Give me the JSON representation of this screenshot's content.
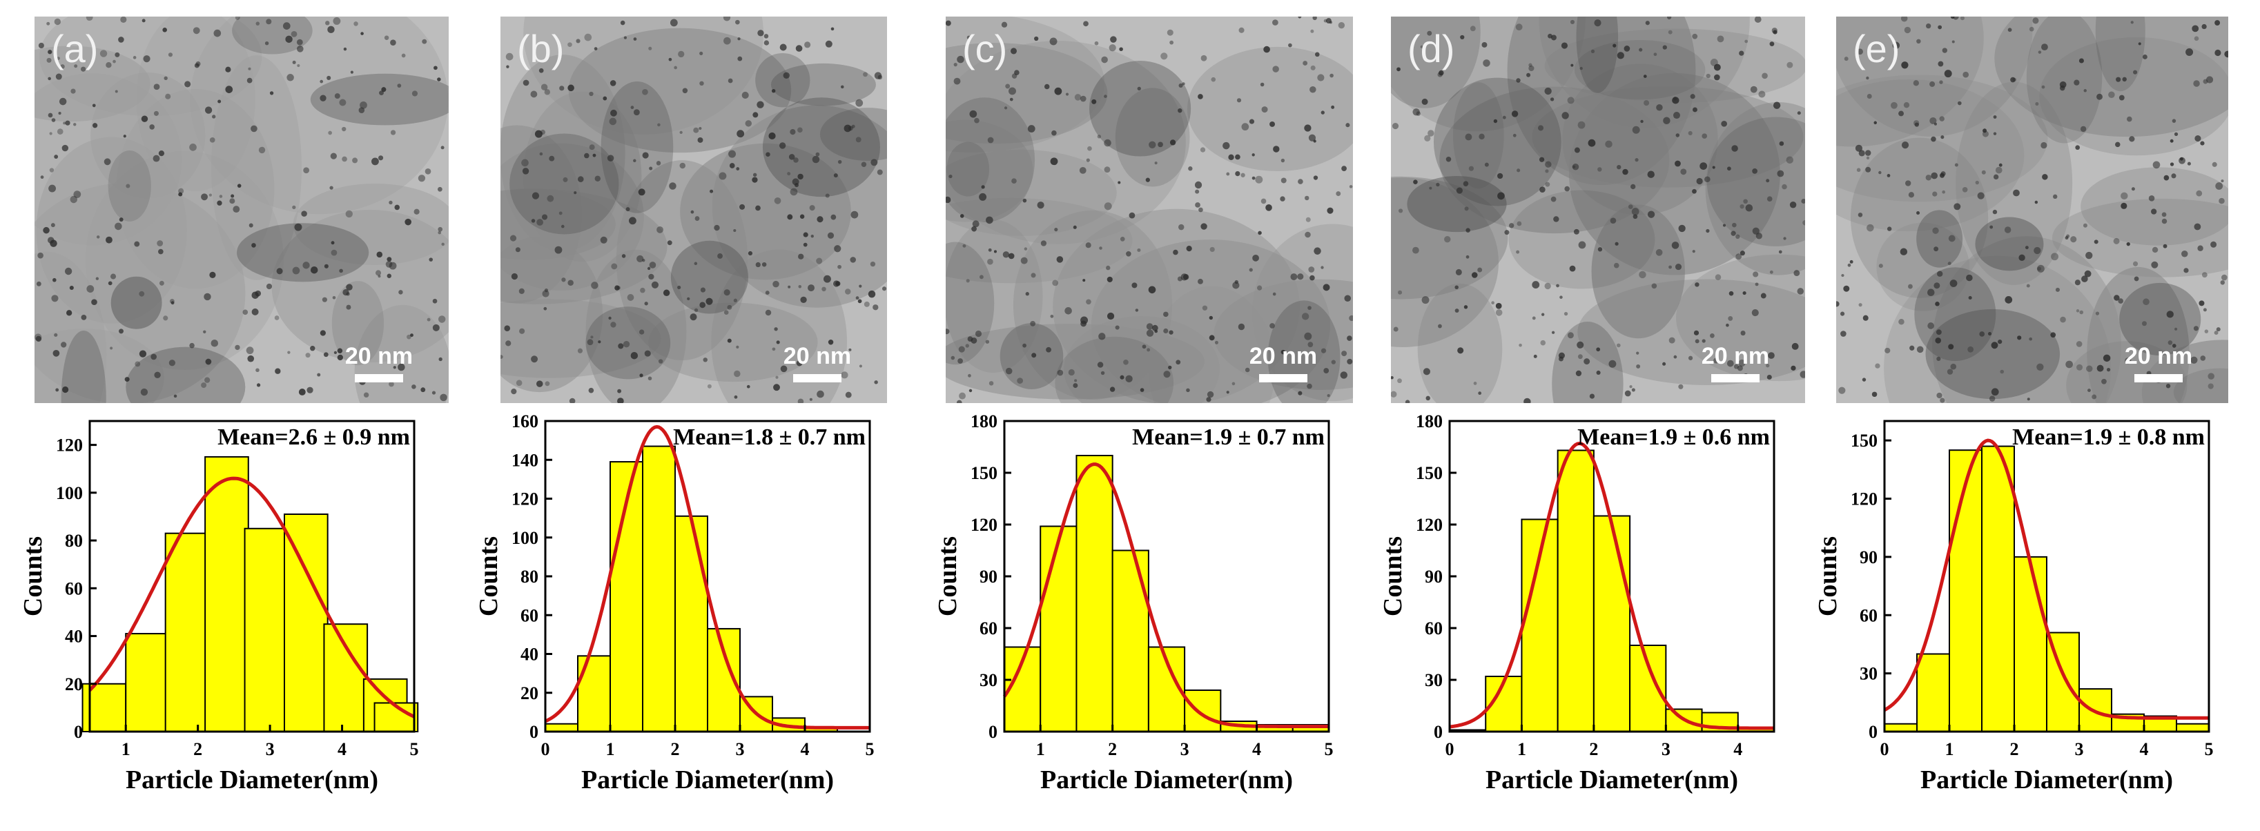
{
  "panels": [
    {
      "label": "(a)",
      "scale_text": "20 nm",
      "mean_text": "Mean=2.6 ± 0.9 nm",
      "tem_tone": "#9e9e9e",
      "chart_data": {
        "type": "bar",
        "x": [
          0.7,
          1.3,
          1.85,
          2.4,
          2.95,
          3.5,
          4.05,
          4.6
        ],
        "values": [
          20,
          41,
          83,
          115,
          85,
          91,
          45,
          22
        ],
        "fit": {
          "mean": 2.5,
          "sigma": 1.05,
          "peak": 106,
          "baseline": 0
        },
        "xlabel": "Particle Diameter(nm)",
        "ylabel": "Counts",
        "xlim": [
          0.5,
          5
        ],
        "ylim": [
          0,
          130
        ],
        "xticks": [
          1,
          2,
          3,
          4,
          5
        ],
        "yticks": [
          0,
          20,
          40,
          60,
          80,
          100,
          120
        ],
        "extra_bars": [
          {
            "x": 4.75,
            "value": 12
          }
        ]
      }
    },
    {
      "label": "(b)",
      "scale_text": "20 nm",
      "mean_text": "Mean=1.8 ± 0.7 nm",
      "tem_tone": "#8a8a8a",
      "chart_data": {
        "type": "bar",
        "x": [
          0.25,
          0.75,
          1.25,
          1.75,
          2.25,
          2.75,
          3.25,
          3.75
        ],
        "values": [
          4,
          39,
          139,
          147,
          111,
          53,
          18,
          7
        ],
        "fit": {
          "mean": 1.72,
          "sigma": 0.62,
          "peak": 157,
          "baseline": 2
        },
        "xlabel": "Particle Diameter(nm)",
        "ylabel": "Counts",
        "xlim": [
          0,
          5
        ],
        "ylim": [
          0,
          160
        ],
        "xticks": [
          0,
          1,
          2,
          3,
          4,
          5
        ],
        "yticks": [
          0,
          20,
          40,
          60,
          80,
          100,
          120,
          140,
          160
        ],
        "extra_bars": [
          {
            "x": 4.25,
            "value": 2
          }
        ]
      }
    },
    {
      "label": "(c)",
      "scale_text": "20 nm",
      "mean_text": "Mean=1.9 ± 0.7 nm",
      "tem_tone": "#8f8f8f",
      "chart_data": {
        "type": "bar",
        "x": [
          0.75,
          1.25,
          1.75,
          2.25,
          2.75,
          3.25,
          3.75,
          4.25
        ],
        "values": [
          49,
          119,
          160,
          105,
          49,
          24,
          6,
          4
        ],
        "fit": {
          "mean": 1.75,
          "sigma": 0.6,
          "peak": 155,
          "baseline": 3
        },
        "xlabel": "Particle Diameter(nm)",
        "ylabel": "Counts",
        "xlim": [
          0.5,
          5
        ],
        "ylim": [
          0,
          180
        ],
        "xticks": [
          1,
          2,
          3,
          4,
          5
        ],
        "yticks": [
          0,
          30,
          60,
          90,
          120,
          150,
          180
        ],
        "extra_bars": [
          {
            "x": 4.75,
            "value": 4
          }
        ]
      }
    },
    {
      "label": "(d)",
      "scale_text": "20 nm",
      "mean_text": "Mean=1.9 ± 0.6 nm",
      "tem_tone": "#7c7c7c",
      "chart_data": {
        "type": "bar",
        "x": [
          0.25,
          0.75,
          1.25,
          1.75,
          2.25,
          2.75,
          3.25,
          3.75
        ],
        "values": [
          1,
          32,
          123,
          163,
          125,
          50,
          13,
          11
        ],
        "fit": {
          "mean": 1.8,
          "sigma": 0.55,
          "peak": 167,
          "baseline": 2
        },
        "xlabel": "Particle Diameter(nm)",
        "ylabel": "Counts",
        "xlim": [
          0,
          4.5
        ],
        "ylim": [
          0,
          180
        ],
        "xticks": [
          0,
          1,
          2,
          3,
          4
        ],
        "yticks": [
          0,
          30,
          60,
          90,
          120,
          150,
          180
        ],
        "extra_bars": [
          {
            "x": 4.25,
            "value": 2
          }
        ]
      }
    },
    {
      "label": "(e)",
      "scale_text": "20 nm",
      "mean_text": "Mean=1.9 ± 0.8 nm",
      "tem_tone": "#858585",
      "chart_data": {
        "type": "bar",
        "x": [
          0.25,
          0.75,
          1.25,
          1.75,
          2.25,
          2.75,
          3.25,
          3.75
        ],
        "values": [
          4,
          40,
          145,
          147,
          90,
          51,
          22,
          9
        ],
        "fit": {
          "mean": 1.6,
          "sigma": 0.6,
          "peak": 150,
          "baseline": 7
        },
        "xlabel": "Particle Diameter(nm)",
        "ylabel": "Counts",
        "xlim": [
          0,
          5
        ],
        "ylim": [
          0,
          160
        ],
        "xticks": [
          0,
          1,
          2,
          3,
          4,
          5
        ],
        "yticks": [
          0,
          30,
          60,
          90,
          120,
          150
        ],
        "extra_bars": [
          {
            "x": 4.25,
            "value": 8
          },
          {
            "x": 4.75,
            "value": 4
          }
        ]
      }
    }
  ],
  "colors": {
    "bar_fill": "#ffff00",
    "bar_stroke": "#000000",
    "fit_line": "#d01818"
  }
}
